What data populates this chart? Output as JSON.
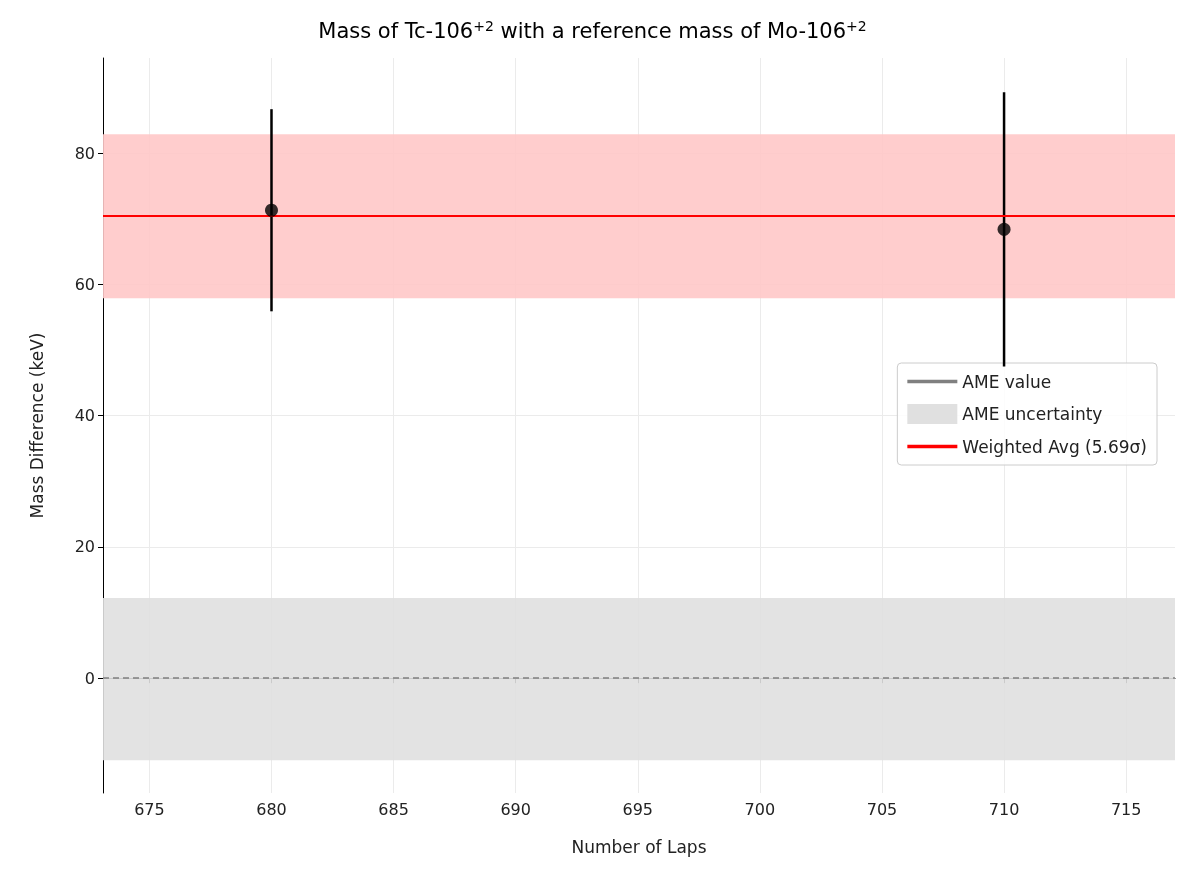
{
  "chart_data": {
    "type": "scatter",
    "title": "Mass of Tc-106$^{+2}$ with a reference mass of Mo-106$^{+2}$",
    "xlabel": "Number of Laps",
    "ylabel": "Mass Difference (keV)",
    "x": [
      680,
      710
    ],
    "series": [
      {
        "color": "#000000",
        "values": [
          71.3,
          68.4
        ],
        "errors": [
          15.4,
          20.9
        ]
      }
    ],
    "ref_lines": [
      {
        "axis": "y",
        "value": 0,
        "label": "AME value",
        "color": "#808080",
        "line_style": "dashed"
      },
      {
        "axis": "y",
        "value": 70.4,
        "label": "Weighted Avg (5.69σ)",
        "color": "#ff0000",
        "line_style": "solid"
      }
    ],
    "bands": [
      {
        "axis": "y",
        "from": -12.5,
        "to": 12.2,
        "label": "AME uncertainty",
        "color": "#e0e0e0"
      },
      {
        "axis": "y",
        "from": 57.9,
        "to": 82.9,
        "color": "#ffc8c8"
      }
    ],
    "xlim": [
      673.1,
      717
    ],
    "xticks": [
      675,
      680,
      685,
      690,
      695,
      700,
      705,
      710,
      715
    ],
    "ylim": [
      -17.5,
      94.5
    ],
    "yticks": [
      0,
      20,
      40,
      60,
      80
    ],
    "grid": true,
    "legend": "right",
    "marker": "circle"
  }
}
